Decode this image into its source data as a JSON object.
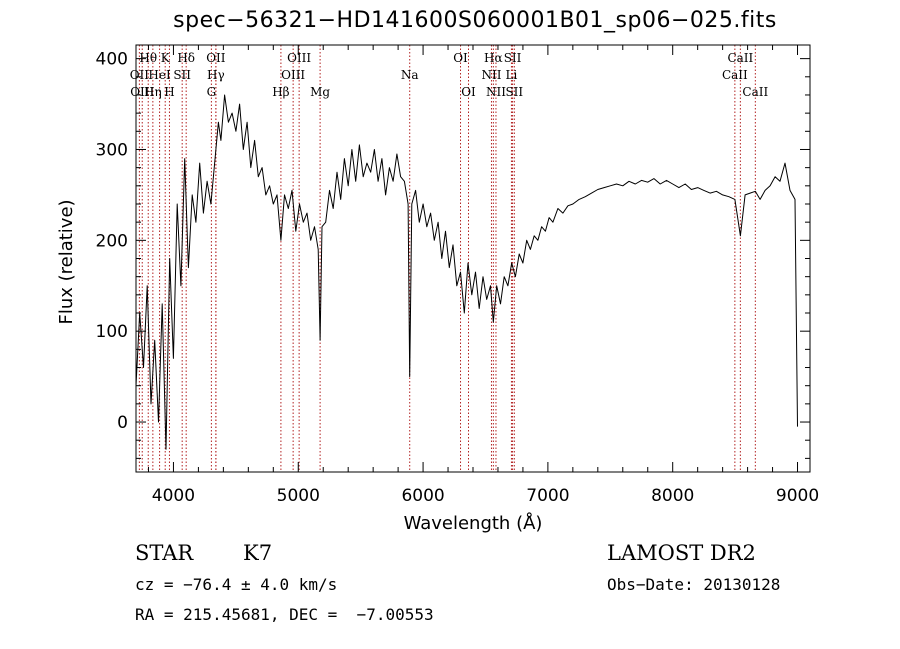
{
  "chart_data": {
    "type": "line",
    "title": "spec−56321−HD141600S060001B01_sp06−025.fits",
    "xlabel": "Wavelength (Å)",
    "ylabel": "Flux (relative)",
    "xlim": [
      3700,
      9100
    ],
    "ylim": [
      -55,
      415
    ],
    "xticks": [
      4000,
      5000,
      6000,
      7000,
      8000,
      9000
    ],
    "yticks": [
      0,
      100,
      200,
      300,
      400
    ],
    "grid": false,
    "line_color": "#000000",
    "marker_color": "#b22222",
    "series": [
      {
        "x": [
          3700,
          3730,
          3760,
          3790,
          3820,
          3850,
          3880,
          3910,
          3940,
          3970,
          4000,
          4030,
          4060,
          4090,
          4120,
          4150,
          4180,
          4210,
          4240,
          4270,
          4300,
          4320,
          4340,
          4360,
          4380,
          4410,
          4440,
          4470,
          4500,
          4530,
          4560,
          4590,
          4620,
          4650,
          4680,
          4710,
          4740,
          4770,
          4800,
          4830,
          4861,
          4890,
          4920,
          4950,
          4980,
          5010,
          5040,
          5070,
          5100,
          5130,
          5160,
          5175,
          5190,
          5220,
          5250,
          5280,
          5310,
          5340,
          5370,
          5400,
          5430,
          5460,
          5490,
          5520,
          5550,
          5580,
          5610,
          5640,
          5670,
          5700,
          5730,
          5760,
          5790,
          5820,
          5850,
          5880,
          5893,
          5910,
          5940,
          5970,
          6000,
          6030,
          6060,
          6090,
          6120,
          6150,
          6180,
          6210,
          6240,
          6270,
          6300,
          6330,
          6360,
          6390,
          6420,
          6450,
          6480,
          6510,
          6540,
          6563,
          6590,
          6620,
          6650,
          6680,
          6710,
          6740,
          6770,
          6800,
          6830,
          6860,
          6890,
          6920,
          6950,
          6980,
          7010,
          7040,
          7080,
          7120,
          7160,
          7200,
          7250,
          7300,
          7350,
          7400,
          7450,
          7500,
          7550,
          7600,
          7650,
          7700,
          7750,
          7800,
          7850,
          7900,
          7950,
          8000,
          8050,
          8100,
          8150,
          8200,
          8250,
          8300,
          8350,
          8400,
          8450,
          8498,
          8542,
          8580,
          8620,
          8662,
          8700,
          8740,
          8780,
          8820,
          8860,
          8900,
          8940,
          8960,
          8980,
          9000
        ],
        "y": [
          40,
          120,
          60,
          150,
          20,
          90,
          0,
          130,
          -30,
          180,
          70,
          240,
          150,
          290,
          170,
          250,
          220,
          285,
          230,
          265,
          240,
          270,
          300,
          330,
          310,
          360,
          330,
          340,
          320,
          350,
          300,
          330,
          280,
          310,
          270,
          280,
          250,
          260,
          240,
          250,
          200,
          250,
          235,
          255,
          210,
          240,
          220,
          230,
          200,
          215,
          190,
          90,
          215,
          220,
          255,
          235,
          275,
          245,
          290,
          260,
          300,
          265,
          305,
          270,
          285,
          275,
          300,
          265,
          290,
          250,
          280,
          265,
          295,
          270,
          265,
          240,
          50,
          240,
          255,
          220,
          240,
          215,
          230,
          200,
          220,
          180,
          210,
          170,
          195,
          150,
          165,
          120,
          175,
          140,
          165,
          125,
          160,
          135,
          150,
          110,
          150,
          130,
          160,
          150,
          175,
          160,
          185,
          175,
          200,
          190,
          205,
          200,
          215,
          210,
          225,
          220,
          235,
          230,
          238,
          240,
          245,
          248,
          252,
          256,
          258,
          260,
          262,
          260,
          265,
          262,
          266,
          264,
          268,
          262,
          266,
          262,
          258,
          262,
          256,
          258,
          255,
          252,
          254,
          250,
          248,
          245,
          205,
          250,
          252,
          254,
          245,
          255,
          260,
          270,
          265,
          285,
          255,
          250,
          245,
          -5
        ]
      }
    ],
    "spectral_lines": [
      {
        "label": "Hθ",
        "x": 3798,
        "row": 0
      },
      {
        "label": "K",
        "x": 3934,
        "row": 0
      },
      {
        "label": "Hδ",
        "x": 4102,
        "row": 0
      },
      {
        "label": "OII",
        "x": 4340,
        "row": 0
      },
      {
        "label": "OIII",
        "x": 5007,
        "row": 0
      },
      {
        "label": "OI",
        "x": 6300,
        "row": 0
      },
      {
        "label": "Hα",
        "x": 6563,
        "row": 0
      },
      {
        "label": "SII",
        "x": 6717,
        "row": 0
      },
      {
        "label": "CaII",
        "x": 8542,
        "row": 0
      },
      {
        "label": "OII",
        "x": 3727,
        "row": 1
      },
      {
        "label": "HeI",
        "x": 3889,
        "row": 1
      },
      {
        "label": "SII",
        "x": 4070,
        "row": 1
      },
      {
        "label": "Hγ",
        "x": 4340,
        "row": 1
      },
      {
        "label": "OIII",
        "x": 4959,
        "row": 1
      },
      {
        "label": "Na",
        "x": 5893,
        "row": 1
      },
      {
        "label": "NII",
        "x": 6548,
        "row": 1
      },
      {
        "label": "Li",
        "x": 6708,
        "row": 1
      },
      {
        "label": "CaII",
        "x": 8498,
        "row": 1
      },
      {
        "label": "OIII",
        "x": 3750,
        "row": 2
      },
      {
        "label": "Hη",
        "x": 3835,
        "row": 2
      },
      {
        "label": "H",
        "x": 3968,
        "row": 2
      },
      {
        "label": "G",
        "x": 4304,
        "row": 2
      },
      {
        "label": "Hβ",
        "x": 4861,
        "row": 2
      },
      {
        "label": "Mg",
        "x": 5175,
        "row": 2
      },
      {
        "label": "OI",
        "x": 6364,
        "row": 2
      },
      {
        "label": "NII",
        "x": 6584,
        "row": 2
      },
      {
        "label": "SII",
        "x": 6731,
        "row": 2
      },
      {
        "label": "CaII",
        "x": 8662,
        "row": 2
      }
    ]
  },
  "info": {
    "object_class": "STAR",
    "subclass": "K7",
    "survey": "LAMOST DR2",
    "cz": "cz = −76.4 ± 4.0 km/s",
    "obs_date": "Obs−Date: 20130128",
    "coords": "RA = 215.45681, DEC =  −7.00553"
  }
}
